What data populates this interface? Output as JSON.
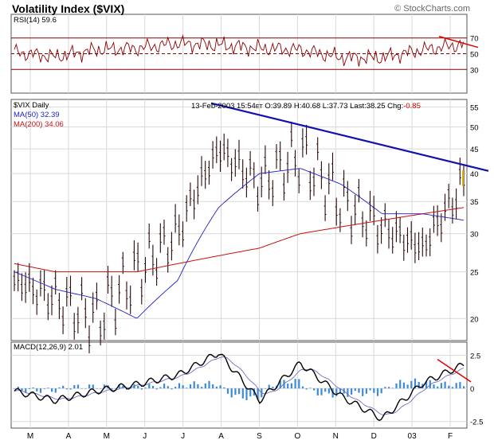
{
  "page": {
    "title": "Volatility Index ($VIX)",
    "copyright": "© StockCharts.com"
  },
  "rsi_panel": {
    "label": "RSI(14) 59.6",
    "ticks": [
      "70",
      "50",
      "30"
    ]
  },
  "price_panel": {
    "symbol_label": "$VIX Daily",
    "ma50_label": "MA(50) 32.39",
    "ma200_label": "MA(200) 34.06",
    "quote": {
      "date": "13-Feb-2003 15:54",
      "suffix": "ET",
      "open": "O:39.89",
      "high": "H:40.68",
      "low": "L:37.73",
      "last": "Last:38.25",
      "chg_label": "Chg:",
      "chg_value": "-0.85"
    },
    "yticks": [
      "55",
      "50",
      "45",
      "40",
      "35",
      "30",
      "25",
      "20"
    ]
  },
  "macd_panel": {
    "label": "MACD(12,26,9) 2.01",
    "yticks": [
      "2.5",
      "0",
      "-2.5"
    ]
  },
  "x_axis": {
    "labels": [
      "M",
      "A",
      "M",
      "J",
      "J",
      "A",
      "S",
      "O",
      "N",
      "D",
      "03",
      "F"
    ]
  },
  "colors": {
    "trendline": "#1010b0",
    "ma50": "#2020c0",
    "ma200": "#c81010",
    "rsi_line": "#8b0000",
    "rsi_ref": "#8b0000",
    "divergence": "#e00000",
    "histogram": "#3d8bd6",
    "macd_signal": "#000000",
    "grid": "#d8d8d8"
  },
  "chart_data": [
    {
      "type": "line",
      "name": "RSI",
      "ylim": [
        0,
        100
      ],
      "reference_lines": [
        70,
        50,
        30
      ],
      "x": [
        "M",
        "A",
        "M",
        "J",
        "J",
        "A",
        "S",
        "O",
        "N",
        "D",
        "03",
        "F"
      ],
      "values": [
        52,
        46,
        55,
        57,
        63,
        61,
        57,
        55,
        45,
        45,
        55,
        62
      ]
    },
    {
      "type": "candlestick",
      "name": "$VIX Daily",
      "scale": "log",
      "ylim": [
        18,
        57
      ],
      "x": [
        "M",
        "A",
        "M",
        "J",
        "J",
        "A",
        "S",
        "O",
        "N",
        "D",
        "03",
        "F"
      ],
      "values": [
        24,
        22,
        20,
        25,
        30,
        45,
        38,
        44,
        35,
        31,
        28,
        38
      ],
      "ma50": [
        25,
        23,
        22,
        20,
        24,
        34,
        40,
        41,
        38,
        33,
        33,
        32
      ],
      "ma200": [
        26,
        25,
        25,
        25,
        26,
        27,
        28,
        30,
        31,
        32,
        33,
        34
      ]
    },
    {
      "type": "line",
      "name": "MACD(12,26,9)",
      "ylim": [
        -3,
        3.5
      ],
      "x": [
        "M",
        "A",
        "M",
        "J",
        "J",
        "A",
        "S",
        "O",
        "N",
        "D",
        "03",
        "F"
      ],
      "values": [
        -0.2,
        -0.9,
        -0.2,
        0.3,
        1.0,
        2.7,
        -0.9,
        1.9,
        -0.6,
        -2.3,
        0.4,
        1.8
      ]
    }
  ]
}
